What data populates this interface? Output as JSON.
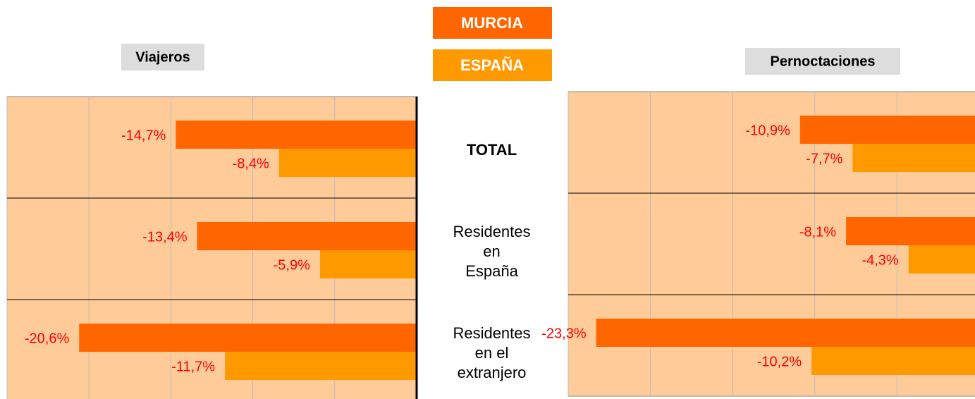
{
  "chart_data": {
    "type": "bar",
    "categories": [
      "TOTAL",
      "Residentes\nen\nEspaña",
      "Residentes\nen el\nextranjero"
    ],
    "series": [
      {
        "name": "MURCIA",
        "color": "#ff6600"
      },
      {
        "name": "ESPAÑA",
        "color": "#ff9900"
      }
    ],
    "grid": true,
    "panels": [
      {
        "title": "Viajeros",
        "values": [
          [
            -14.7,
            -13.4,
            -20.6
          ],
          [
            -8.4,
            -5.9,
            -11.7
          ]
        ],
        "value_labels": [
          [
            "-14,7%",
            "-13,4%",
            "-20,6%"
          ],
          [
            "-8,4%",
            "-5,9%",
            "-11,7%"
          ]
        ],
        "xlim": [
          -25,
          0
        ],
        "xticks": [
          -25,
          -20,
          -15,
          -10,
          -5,
          0
        ]
      },
      {
        "title": "Pernoctaciones",
        "values": [
          [
            -10.9,
            -8.1,
            -23.3
          ],
          [
            -7.7,
            -4.3,
            -10.2
          ]
        ],
        "value_labels": [
          [
            "-10,9%",
            "-8,1%",
            "-23,3%"
          ],
          [
            "-7,7%",
            "-4,3%",
            "-10,2%"
          ]
        ],
        "xlim": [
          -25,
          0
        ],
        "xticks": [
          -25,
          -20,
          -15,
          -10,
          -5,
          0
        ]
      }
    ]
  }
}
